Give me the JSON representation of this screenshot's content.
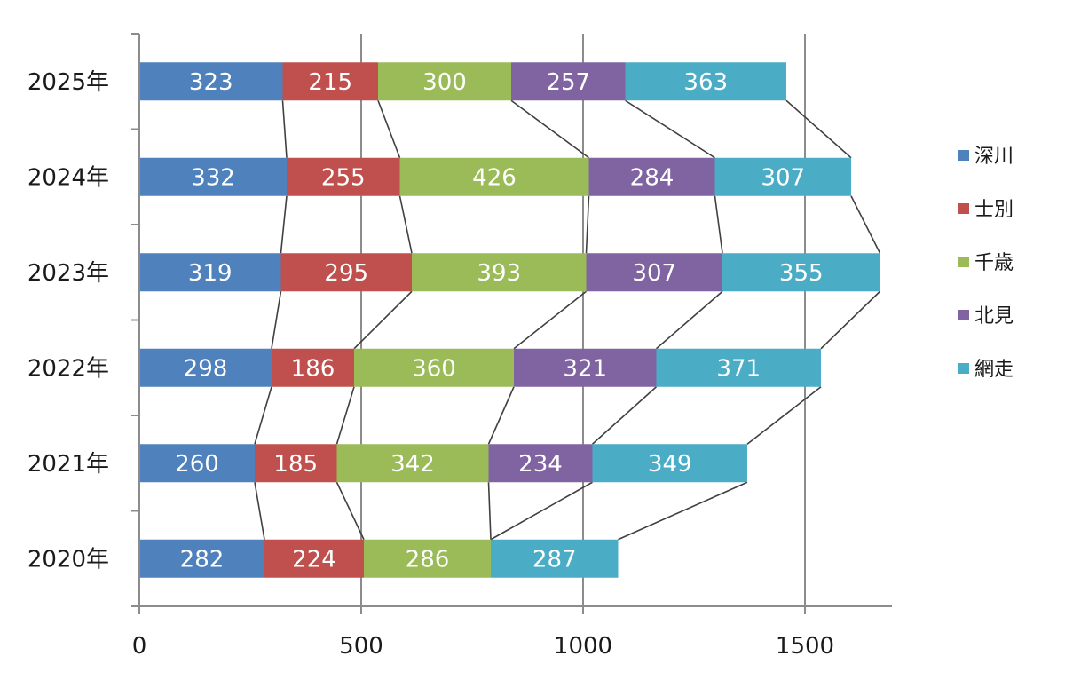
{
  "chart_data": {
    "type": "bar",
    "orientation": "horizontal",
    "stacked": true,
    "series_lines": true,
    "categories": [
      "2025年",
      "2024年",
      "2023年",
      "2022年",
      "2021年",
      "2020年"
    ],
    "series": [
      {
        "name": "深川",
        "color": "#4f81bd",
        "values": [
          323,
          332,
          319,
          298,
          260,
          282
        ]
      },
      {
        "name": "士別",
        "color": "#c0504d",
        "values": [
          215,
          255,
          295,
          186,
          185,
          224
        ]
      },
      {
        "name": "千歳",
        "color": "#9bbb59",
        "values": [
          300,
          426,
          393,
          360,
          342,
          286
        ]
      },
      {
        "name": "北見",
        "color": "#8064a2",
        "values": [
          257,
          284,
          307,
          321,
          234,
          null
        ]
      },
      {
        "name": "網走",
        "color": "#4bacc6",
        "values": [
          363,
          307,
          355,
          371,
          349,
          287
        ]
      }
    ],
    "x_ticks": [
      "0",
      "500",
      "1000",
      "1500"
    ],
    "xlim": [
      0,
      1700
    ],
    "title": "",
    "xlabel": "",
    "ylabel": "",
    "grid": "vertical",
    "legend_position": "right"
  }
}
